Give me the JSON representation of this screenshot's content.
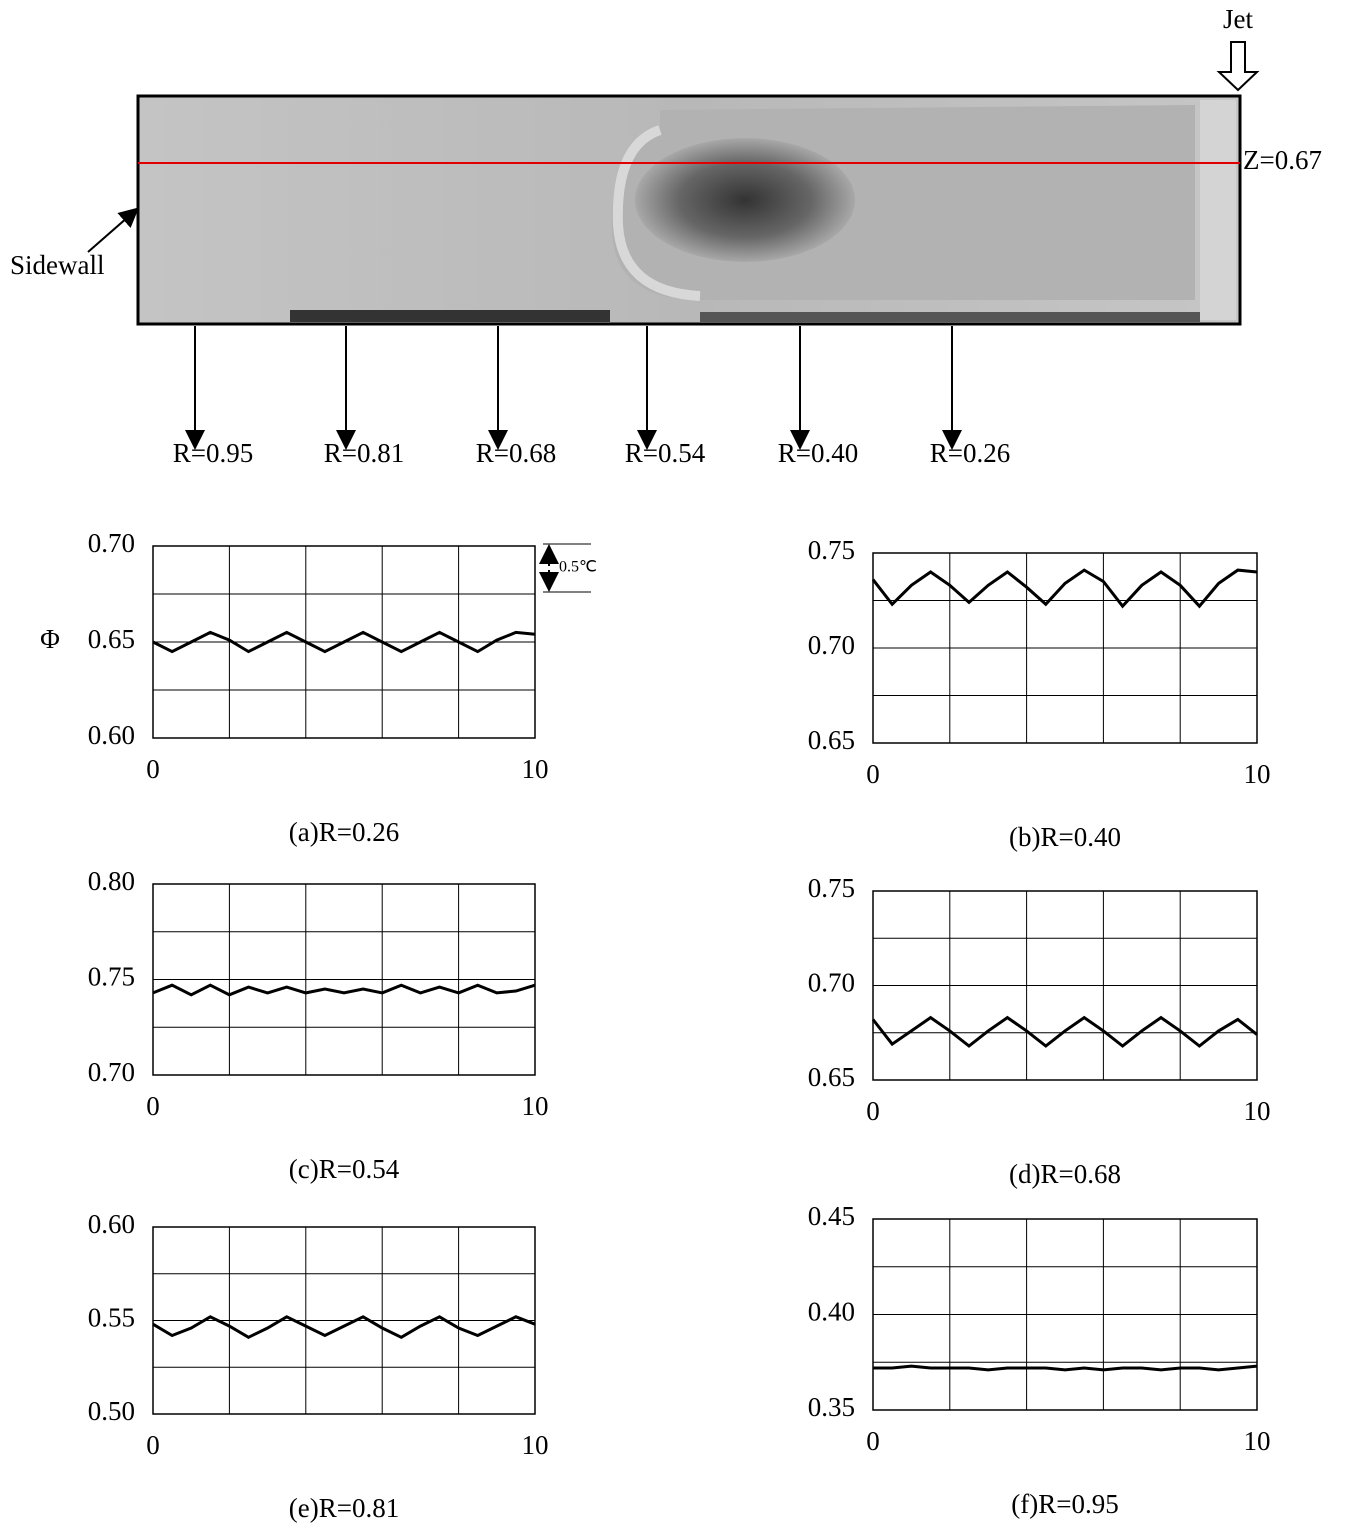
{
  "figure": {
    "jet_label": "Jet",
    "z_label": "Z=0.67",
    "sidewall_label": "Sidewall",
    "positions": [
      "R=0.95",
      "R=0.81",
      "R=0.68",
      "R=0.54",
      "R=0.40",
      "R=0.26"
    ]
  },
  "chart_data": [
    {
      "type": "line",
      "title": "(a)R=0.26",
      "ylabel": "Φ",
      "annotation": "0.5℃",
      "color": "#000000",
      "x": [
        0,
        0.5,
        1,
        1.5,
        2,
        2.5,
        3,
        3.5,
        4,
        4.5,
        5,
        5.5,
        6,
        6.5,
        7,
        7.5,
        8,
        8.5,
        9,
        9.5,
        10
      ],
      "values": [
        0.65,
        0.645,
        0.65,
        0.655,
        0.651,
        0.645,
        0.65,
        0.655,
        0.65,
        0.645,
        0.65,
        0.655,
        0.65,
        0.645,
        0.65,
        0.655,
        0.65,
        0.645,
        0.651,
        0.655,
        0.654
      ],
      "xlim": [
        0,
        10
      ],
      "xticks": [
        0,
        10
      ],
      "xgrid": [
        2,
        4,
        6,
        8
      ],
      "ylim": [
        0.6,
        0.7
      ],
      "yticks": [
        {
          "value": 0.6,
          "label": "0.60"
        },
        0.65,
        {
          "value": 0.7,
          "label": "0.70"
        }
      ],
      "ygrid": [
        0.625,
        0.675
      ]
    },
    {
      "type": "line",
      "title": "(b)R=0.40",
      "color": "#000000",
      "x": [
        0,
        0.5,
        1,
        1.5,
        2,
        2.5,
        3,
        3.5,
        4,
        4.5,
        5,
        5.5,
        6,
        6.5,
        7,
        7.5,
        8,
        8.5,
        9,
        9.5,
        10
      ],
      "values": [
        0.736,
        0.723,
        0.733,
        0.74,
        0.733,
        0.724,
        0.733,
        0.74,
        0.732,
        0.723,
        0.734,
        0.741,
        0.735,
        0.722,
        0.733,
        0.74,
        0.733,
        0.722,
        0.734,
        0.741,
        0.74
      ],
      "xlim": [
        0,
        10
      ],
      "xticks": [
        0,
        10
      ],
      "xgrid": [
        2,
        4,
        6,
        8
      ],
      "ylim": [
        0.65,
        0.75
      ],
      "yticks": [
        0.65,
        {
          "value": 0.7,
          "label": "0.70"
        },
        0.75
      ],
      "ygrid": [
        0.675,
        0.725
      ]
    },
    {
      "type": "line",
      "title": "(c)R=0.54",
      "color": "#000000",
      "x": [
        0,
        0.5,
        1,
        1.5,
        2,
        2.5,
        3,
        3.5,
        4,
        4.5,
        5,
        5.5,
        6,
        6.5,
        7,
        7.5,
        8,
        8.5,
        9,
        9.5,
        10
      ],
      "values": [
        0.743,
        0.747,
        0.742,
        0.747,
        0.742,
        0.746,
        0.743,
        0.746,
        0.743,
        0.745,
        0.743,
        0.745,
        0.743,
        0.747,
        0.743,
        0.746,
        0.743,
        0.747,
        0.743,
        0.744,
        0.747
      ],
      "xlim": [
        0,
        10
      ],
      "xticks": [
        0,
        10
      ],
      "xgrid": [
        2,
        4,
        6,
        8
      ],
      "ylim": [
        0.7,
        0.8
      ],
      "yticks": [
        {
          "value": 0.7,
          "label": "0.70"
        },
        0.75,
        {
          "value": 0.8,
          "label": "0.80"
        }
      ],
      "ygrid": [
        0.725,
        0.775
      ]
    },
    {
      "type": "line",
      "title": "(d)R=0.68",
      "color": "#000000",
      "x": [
        0,
        0.5,
        1,
        1.5,
        2,
        2.5,
        3,
        3.5,
        4,
        4.5,
        5,
        5.5,
        6,
        6.5,
        7,
        7.5,
        8,
        8.5,
        9,
        9.5,
        10
      ],
      "values": [
        0.682,
        0.669,
        0.676,
        0.683,
        0.676,
        0.668,
        0.676,
        0.683,
        0.676,
        0.668,
        0.676,
        0.683,
        0.676,
        0.668,
        0.676,
        0.683,
        0.676,
        0.668,
        0.676,
        0.682,
        0.674
      ],
      "xlim": [
        0,
        10
      ],
      "xticks": [
        0,
        10
      ],
      "xgrid": [
        2,
        4,
        6,
        8
      ],
      "ylim": [
        0.65,
        0.75
      ],
      "yticks": [
        0.65,
        {
          "value": 0.7,
          "label": "0.70"
        },
        0.75
      ],
      "ygrid": [
        0.675,
        0.725
      ]
    },
    {
      "type": "line",
      "title": "(e)R=0.81",
      "color": "#000000",
      "x": [
        0,
        0.5,
        1,
        1.5,
        2,
        2.5,
        3,
        3.5,
        4,
        4.5,
        5,
        5.5,
        6,
        6.5,
        7,
        7.5,
        8,
        8.5,
        9,
        9.5,
        10
      ],
      "values": [
        0.548,
        0.542,
        0.546,
        0.552,
        0.547,
        0.541,
        0.546,
        0.552,
        0.547,
        0.542,
        0.547,
        0.552,
        0.546,
        0.541,
        0.547,
        0.552,
        0.546,
        0.542,
        0.547,
        0.552,
        0.548
      ],
      "xlim": [
        0,
        10
      ],
      "xticks": [
        0,
        10
      ],
      "xgrid": [
        2,
        4,
        6,
        8
      ],
      "ylim": [
        0.5,
        0.6
      ],
      "yticks": [
        {
          "value": 0.5,
          "label": "0.50"
        },
        0.55,
        {
          "value": 0.6,
          "label": "0.60"
        }
      ],
      "ygrid": [
        0.525,
        0.575
      ]
    },
    {
      "type": "line",
      "title": "(f)R=0.95",
      "color": "#000000",
      "x": [
        0,
        0.5,
        1,
        1.5,
        2,
        2.5,
        3,
        3.5,
        4,
        4.5,
        5,
        5.5,
        6,
        6.5,
        7,
        7.5,
        8,
        8.5,
        9,
        9.5,
        10
      ],
      "values": [
        0.372,
        0.372,
        0.373,
        0.372,
        0.372,
        0.372,
        0.371,
        0.372,
        0.372,
        0.372,
        0.371,
        0.372,
        0.371,
        0.372,
        0.372,
        0.371,
        0.372,
        0.372,
        0.371,
        0.372,
        0.373
      ],
      "xlim": [
        0,
        10
      ],
      "xticks": [
        0,
        10
      ],
      "xgrid": [
        2,
        4,
        6,
        8
      ],
      "ylim": [
        0.35,
        0.45
      ],
      "yticks": [
        0.35,
        {
          "value": 0.4,
          "label": "0.40"
        },
        0.45
      ],
      "ygrid": [
        0.375,
        0.425
      ]
    }
  ]
}
